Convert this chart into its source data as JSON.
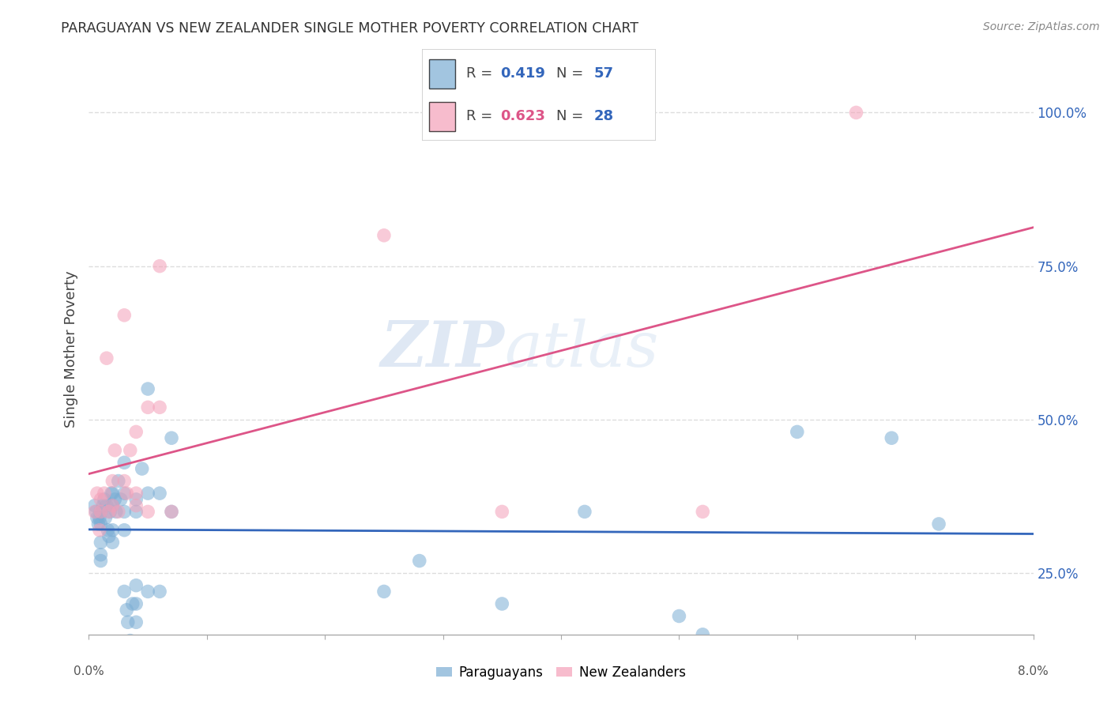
{
  "title": "PARAGUAYAN VS NEW ZEALANDER SINGLE MOTHER POVERTY CORRELATION CHART",
  "source": "Source: ZipAtlas.com",
  "ylabel": "Single Mother Poverty",
  "xlim": [
    0.0,
    0.08
  ],
  "ylim": [
    0.15,
    1.08
  ],
  "blue_R": "0.419",
  "blue_N": "57",
  "pink_R": "0.623",
  "pink_N": "28",
  "blue_color": "#7BADD4",
  "pink_color": "#F4A0B8",
  "blue_line_color": "#3366BB",
  "pink_line_color": "#DD5588",
  "blue_label": "Paraguayans",
  "pink_label": "New Zealanders",
  "watermark_zip": "ZIP",
  "watermark_atlas": "atlas",
  "background_color": "#FFFFFF",
  "grid_color": "#DDDDDD",
  "ytick_vals": [
    0.25,
    0.5,
    0.75,
    1.0
  ],
  "ytick_labels": [
    "25.0%",
    "50.0%",
    "75.0%",
    "100.0%"
  ],
  "blue_points_x": [
    0.0005,
    0.0006,
    0.0007,
    0.0008,
    0.0009,
    0.001,
    0.001,
    0.001,
    0.001,
    0.001,
    0.0012,
    0.0013,
    0.0014,
    0.0015,
    0.0016,
    0.0017,
    0.0018,
    0.0019,
    0.002,
    0.002,
    0.002,
    0.002,
    0.0022,
    0.0023,
    0.0025,
    0.0027,
    0.003,
    0.003,
    0.003,
    0.003,
    0.003,
    0.0032,
    0.0033,
    0.0035,
    0.0037,
    0.004,
    0.004,
    0.004,
    0.004,
    0.004,
    0.0045,
    0.005,
    0.005,
    0.005,
    0.006,
    0.006,
    0.007,
    0.007,
    0.025,
    0.028,
    0.035,
    0.042,
    0.05,
    0.052,
    0.06,
    0.068,
    0.072
  ],
  "blue_points_y": [
    0.36,
    0.35,
    0.34,
    0.33,
    0.34,
    0.33,
    0.35,
    0.3,
    0.28,
    0.27,
    0.36,
    0.37,
    0.34,
    0.36,
    0.32,
    0.31,
    0.35,
    0.38,
    0.36,
    0.38,
    0.32,
    0.3,
    0.37,
    0.35,
    0.4,
    0.37,
    0.43,
    0.38,
    0.35,
    0.32,
    0.22,
    0.19,
    0.17,
    0.14,
    0.2,
    0.35,
    0.37,
    0.23,
    0.2,
    0.17,
    0.42,
    0.55,
    0.38,
    0.22,
    0.38,
    0.22,
    0.47,
    0.35,
    0.22,
    0.27,
    0.2,
    0.35,
    0.18,
    0.15,
    0.48,
    0.47,
    0.33
  ],
  "pink_points_x": [
    0.0005,
    0.0007,
    0.0009,
    0.001,
    0.001,
    0.0013,
    0.0015,
    0.0017,
    0.002,
    0.002,
    0.0022,
    0.0025,
    0.003,
    0.003,
    0.0032,
    0.0035,
    0.004,
    0.004,
    0.004,
    0.005,
    0.005,
    0.006,
    0.006,
    0.007,
    0.025,
    0.035,
    0.052,
    0.065
  ],
  "pink_points_y": [
    0.35,
    0.38,
    0.32,
    0.35,
    0.37,
    0.38,
    0.6,
    0.35,
    0.36,
    0.4,
    0.45,
    0.35,
    0.4,
    0.67,
    0.38,
    0.45,
    0.48,
    0.38,
    0.36,
    0.52,
    0.35,
    0.75,
    0.52,
    0.35,
    0.8,
    0.35,
    0.35,
    1.0
  ]
}
